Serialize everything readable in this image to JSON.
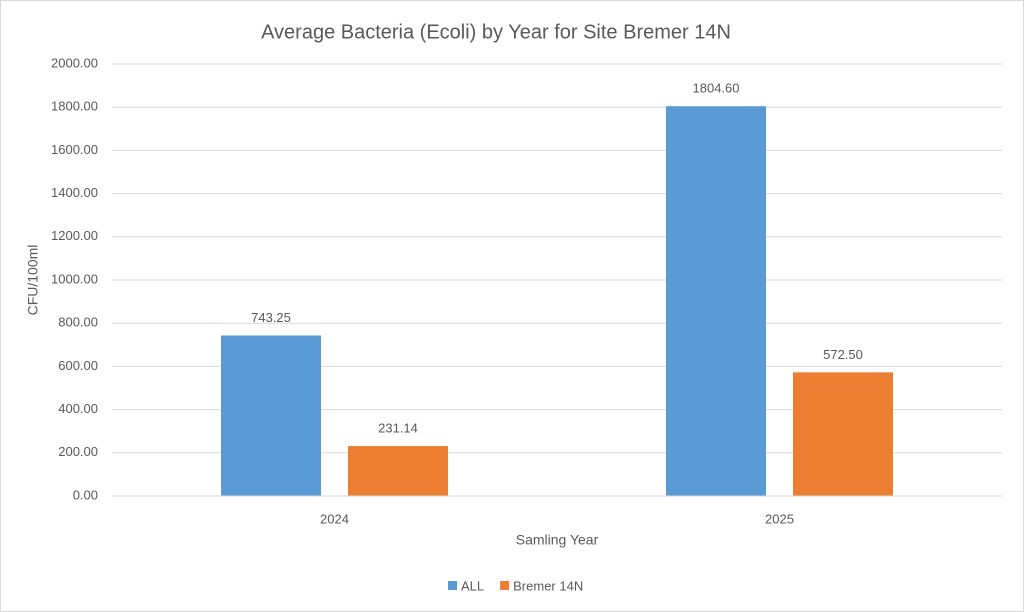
{
  "chart_data": {
    "type": "bar",
    "title": "Average Bacteria (Ecoli) by Year for Site Bremer 14N",
    "x_label": "Samling Year",
    "y_label": "CFU/100ml",
    "categories": [
      "2024",
      "2025"
    ],
    "series": [
      {
        "name": "ALL",
        "color": "#5b9bd5",
        "values": [
          743.25,
          1804.6
        ],
        "value_labels": [
          "743.25",
          "1804.60"
        ]
      },
      {
        "name": "Bremer 14N",
        "color": "#ed7d31",
        "values": [
          231.14,
          572.5
        ],
        "value_labels": [
          "231.14",
          "572.50"
        ]
      }
    ],
    "ylim": [
      0,
      2000
    ],
    "yticks": [
      {
        "value": 0,
        "label": "0.00"
      },
      {
        "value": 200,
        "label": "200.00"
      },
      {
        "value": 400,
        "label": "400.00"
      },
      {
        "value": 600,
        "label": "600.00"
      },
      {
        "value": 800,
        "label": "800.00"
      },
      {
        "value": 1000,
        "label": "1000.00"
      },
      {
        "value": 1200,
        "label": "1200.00"
      },
      {
        "value": 1400,
        "label": "1400.00"
      },
      {
        "value": 1600,
        "label": "1600.00"
      },
      {
        "value": 1800,
        "label": "1800.00"
      },
      {
        "value": 2000,
        "label": "2000.00"
      }
    ],
    "grid": true,
    "legend": "bottom"
  }
}
